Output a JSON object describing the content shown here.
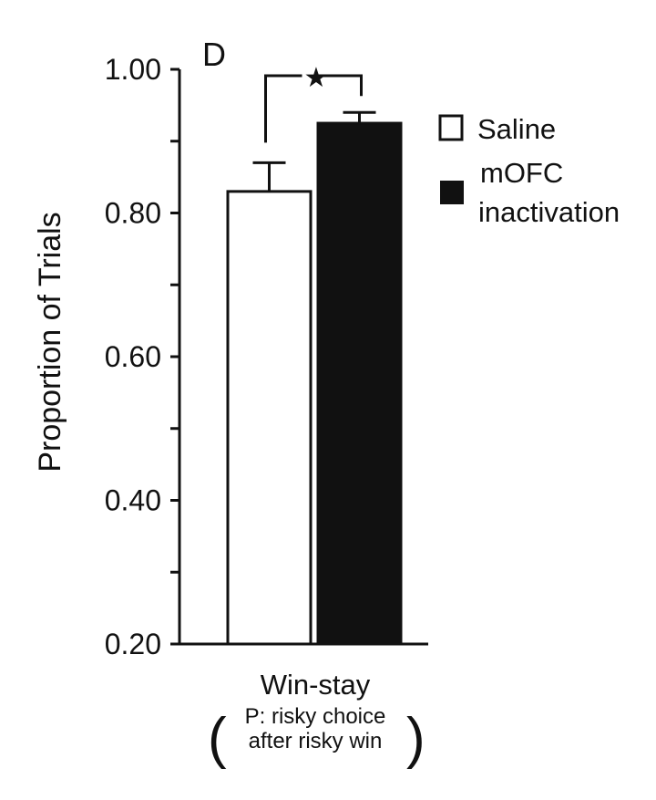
{
  "chart_data": {
    "type": "bar",
    "panel_label": "D",
    "categories": [
      "Win-stay"
    ],
    "category_subtitle": [
      "P: risky choice",
      "after risky win"
    ],
    "series": [
      {
        "name": "Saline",
        "values": [
          0.83
        ],
        "error": [
          0.04
        ],
        "color": "#ffffff"
      },
      {
        "name": "mOFC inactivation",
        "legend_lines": [
          "mOFC",
          "inactivation"
        ],
        "values": [
          0.925
        ],
        "error": [
          0.015
        ],
        "color": "#111111"
      }
    ],
    "ylabel": "Proportion of Trials",
    "ylim": [
      0.2,
      1.0
    ],
    "yticks": [
      "0.20",
      "0.40",
      "0.60",
      "0.80",
      "1.00"
    ],
    "significance": "★",
    "grid": false,
    "legend_position": "right"
  }
}
